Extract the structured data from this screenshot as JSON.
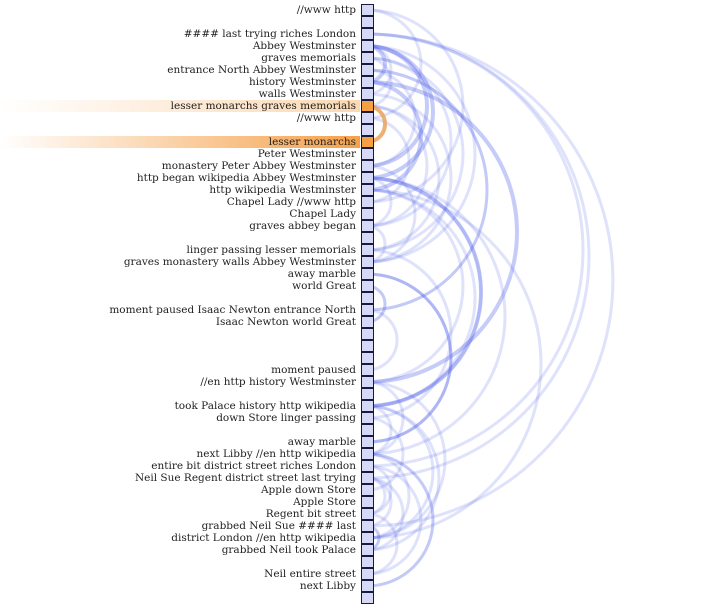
{
  "diagram": {
    "type": "arc-diagram",
    "rows": [
      "//www http",
      "",
      "#### last trying riches London",
      "Abbey Westminster",
      "graves memorials",
      "entrance North Abbey Westminster",
      "history Westminster",
      "walls Westminster",
      "lesser monarchs graves memorials",
      "//www http",
      "",
      "lesser monarchs",
      "Peter Westminster",
      "monastery Peter Abbey Westminster",
      "http began wikipedia Abbey Westminster",
      "http wikipedia Westminster",
      "Chapel Lady //www http",
      "Chapel Lady",
      "graves abbey began",
      "",
      "linger passing lesser memorials",
      "graves monastery walls Abbey Westminster",
      "away marble",
      "world Great",
      "",
      "moment paused Isaac Newton entrance North",
      "Isaac Newton world Great",
      "",
      "",
      "",
      "moment paused",
      "//en http history Westminster",
      "",
      "took Palace history http wikipedia",
      "down Store linger passing",
      "",
      "away marble",
      "next Libby //en http wikipedia",
      "entire bit district street riches London",
      "Neil Sue Regent district street last trying",
      "Apple down Store",
      "Apple Store",
      "Regent bit street",
      "grabbed Neil Sue #### last",
      "district London //en http wikipedia",
      "grabbed Neil took Palace",
      "",
      "Neil entire street",
      "next Libby",
      ""
    ],
    "selected_row": 11,
    "secondary_row": 8,
    "links": [
      [
        0,
        9,
        1
      ],
      [
        0,
        16,
        1
      ],
      [
        9,
        16,
        1
      ],
      [
        3,
        6,
        2
      ],
      [
        3,
        7,
        1
      ],
      [
        3,
        13,
        2
      ],
      [
        3,
        14,
        2
      ],
      [
        3,
        21,
        1
      ],
      [
        6,
        15,
        2
      ],
      [
        6,
        31,
        2
      ],
      [
        6,
        7,
        1
      ],
      [
        7,
        21,
        1
      ],
      [
        12,
        13,
        1
      ],
      [
        13,
        21,
        1
      ],
      [
        14,
        15,
        2
      ],
      [
        14,
        33,
        2
      ],
      [
        15,
        31,
        1
      ],
      [
        15,
        33,
        1
      ],
      [
        14,
        37,
        1
      ],
      [
        15,
        44,
        1
      ],
      [
        31,
        37,
        1
      ],
      [
        31,
        44,
        1
      ],
      [
        33,
        37,
        1
      ],
      [
        33,
        44,
        1
      ],
      [
        37,
        44,
        1
      ],
      [
        2,
        38,
        1
      ],
      [
        2,
        39,
        1
      ],
      [
        2,
        43,
        1
      ],
      [
        38,
        39,
        1
      ],
      [
        38,
        42,
        1
      ],
      [
        39,
        42,
        1
      ],
      [
        39,
        43,
        1
      ],
      [
        38,
        47,
        1
      ],
      [
        42,
        47,
        1
      ],
      [
        43,
        45,
        1
      ],
      [
        39,
        45,
        1
      ],
      [
        37,
        48,
        1
      ],
      [
        48,
        37,
        1
      ],
      [
        40,
        41,
        1
      ],
      [
        40,
        34,
        1
      ],
      [
        34,
        20,
        1
      ],
      [
        20,
        4,
        1
      ],
      [
        20,
        8,
        1
      ],
      [
        8,
        4,
        1
      ],
      [
        4,
        18,
        1
      ],
      [
        8,
        18,
        1
      ],
      [
        18,
        14,
        1
      ],
      [
        18,
        21,
        1
      ],
      [
        22,
        36,
        1
      ],
      [
        22,
        36,
        1
      ],
      [
        23,
        26,
        1
      ],
      [
        25,
        30,
        1
      ],
      [
        25,
        5,
        1
      ],
      [
        5,
        13,
        1
      ],
      [
        17,
        16,
        1
      ],
      [
        26,
        23,
        1
      ],
      [
        43,
        45,
        1
      ],
      [
        45,
        33,
        1
      ],
      [
        33,
        14,
        1
      ],
      [
        36,
        22,
        1
      ],
      [
        5,
        25,
        1
      ],
      [
        12,
        13,
        1
      ]
    ],
    "highlight_link": [
      8,
      11
    ],
    "colors": {
      "link": "#4f5fe8",
      "highlight_link": "#e9a25a",
      "cell": "#d6d9f5",
      "cell_active": "#f4a043",
      "row_highlight": "#f5a14a"
    }
  }
}
